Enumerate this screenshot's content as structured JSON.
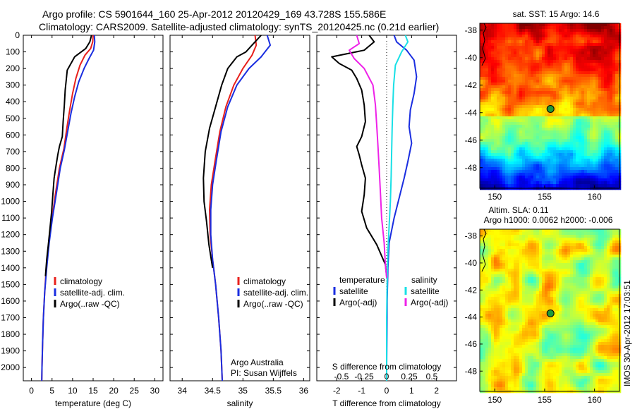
{
  "header": {
    "line1": "Argo profile: CS 5901644_160 25-Apr-2012 20120429_169 43.728S 155.586E",
    "line2": "Climatology: CARS2009. Satellite-adjusted climatology: synTS_20120425.nc (0.21d earlier)"
  },
  "colors": {
    "climatology": "#e8201c",
    "satellite": "#1a2ee0",
    "argo": "#000000",
    "cyan": "#18e0e6",
    "magenta": "#ee22e8",
    "marker": "#1f9a3a"
  },
  "chart_data": [
    {
      "type": "line",
      "id": "temperature",
      "xlabel": "temperature (deg C)",
      "ylabel": "",
      "xlim": [
        -2,
        32
      ],
      "ylim": [
        2080,
        0
      ],
      "xticks": [
        "0",
        "5",
        "10",
        "15",
        "20",
        "25",
        "30"
      ],
      "xtick_values": [
        0,
        5,
        10,
        15,
        20,
        25,
        30
      ],
      "yticks": [
        "0",
        "100",
        "200",
        "300",
        "400",
        "500",
        "600",
        "700",
        "800",
        "900",
        "1000",
        "1100",
        "1200",
        "1300",
        "1400",
        "1500",
        "1600",
        "1700",
        "1800",
        "1900",
        "2000"
      ],
      "ytick_values": [
        0,
        100,
        200,
        300,
        400,
        500,
        600,
        700,
        800,
        900,
        1000,
        1100,
        1200,
        1300,
        1400,
        1500,
        1600,
        1700,
        1800,
        1900,
        2000
      ],
      "legend": [
        "climatology",
        "satellite-adj. clim.",
        "Argo(..raw -QC)"
      ],
      "series": [
        {
          "name": "climatology",
          "color_key": "climatology",
          "points": [
            [
              15,
              0
            ],
            [
              14.9,
              40
            ],
            [
              14.4,
              80
            ],
            [
              13,
              120
            ],
            [
              11.8,
              180
            ],
            [
              10.8,
              260
            ],
            [
              10,
              350
            ],
            [
              9.3,
              450
            ],
            [
              8.6,
              560
            ],
            [
              7.9,
              680
            ],
            [
              6.8,
              800
            ],
            [
              5.8,
              960
            ],
            [
              5,
              1100
            ],
            [
              4.2,
              1250
            ],
            [
              3.6,
              1400
            ],
            [
              3.2,
              1550
            ],
            [
              2.9,
              1700
            ],
            [
              2.7,
              1850
            ],
            [
              2.55,
              2000
            ],
            [
              2.5,
              2080
            ]
          ]
        },
        {
          "name": "satellite-adj. clim.",
          "color_key": "satellite",
          "points": [
            [
              15.3,
              0
            ],
            [
              15.4,
              40
            ],
            [
              15.1,
              90
            ],
            [
              14,
              140
            ],
            [
              12.8,
              200
            ],
            [
              11.5,
              280
            ],
            [
              10.5,
              370
            ],
            [
              9.6,
              470
            ],
            [
              8.8,
              580
            ],
            [
              8,
              690
            ],
            [
              7,
              800
            ],
            [
              6,
              960
            ],
            [
              5.1,
              1100
            ],
            [
              4.3,
              1250
            ],
            [
              3.7,
              1400
            ],
            [
              3.2,
              1550
            ],
            [
              2.9,
              1700
            ],
            [
              2.7,
              1850
            ],
            [
              2.55,
              2000
            ],
            [
              2.5,
              2080
            ]
          ]
        },
        {
          "name": "Argo(..raw -QC)",
          "color_key": "argo",
          "points": [
            [
              14.6,
              0
            ],
            [
              14.2,
              40
            ],
            [
              13.2,
              80
            ],
            [
              10.5,
              130
            ],
            [
              9.6,
              170
            ],
            [
              8.7,
              210
            ],
            [
              8.5,
              260
            ],
            [
              8.2,
              330
            ],
            [
              8,
              420
            ],
            [
              7.7,
              520
            ],
            [
              7.5,
              610
            ],
            [
              6.8,
              670
            ],
            [
              6.4,
              720
            ],
            [
              6,
              780
            ],
            [
              5.5,
              860
            ],
            [
              5.2,
              960
            ],
            [
              4.9,
              1060
            ],
            [
              4.5,
              1160
            ],
            [
              4.1,
              1260
            ],
            [
              3.7,
              1350
            ],
            [
              3.4,
              1450
            ]
          ]
        }
      ]
    },
    {
      "type": "line",
      "id": "salinity",
      "xlabel": "salinity",
      "xlim": [
        33.8,
        36.1
      ],
      "ylim": [
        2080,
        0
      ],
      "xticks": [
        "34",
        "34.5",
        "35",
        "35.5",
        "36"
      ],
      "xtick_values": [
        34,
        34.5,
        35,
        35.5,
        36
      ],
      "legend": [
        "climatology",
        "satellite-adj. clim.",
        "Argo(..raw -QC)"
      ],
      "annotation": [
        "Argo Australia",
        "PI: Susan Wijffels"
      ],
      "series": [
        {
          "name": "climatology",
          "color_key": "climatology",
          "points": [
            [
              35.2,
              0
            ],
            [
              35.22,
              60
            ],
            [
              35.15,
              120
            ],
            [
              35,
              200
            ],
            [
              34.85,
              300
            ],
            [
              34.72,
              430
            ],
            [
              34.62,
              580
            ],
            [
              34.54,
              760
            ],
            [
              34.48,
              900
            ],
            [
              34.45,
              1050
            ],
            [
              34.46,
              1200
            ],
            [
              34.5,
              1350
            ],
            [
              34.55,
              1500
            ],
            [
              34.6,
              1700
            ],
            [
              34.64,
              1900
            ],
            [
              34.66,
              2080
            ]
          ]
        },
        {
          "name": "satellite-adj. clim.",
          "color_key": "satellite",
          "points": [
            [
              35.4,
              0
            ],
            [
              35.45,
              60
            ],
            [
              35.3,
              130
            ],
            [
              35.1,
              200
            ],
            [
              34.9,
              300
            ],
            [
              34.75,
              430
            ],
            [
              34.64,
              580
            ],
            [
              34.56,
              760
            ],
            [
              34.5,
              900
            ],
            [
              34.47,
              1050
            ],
            [
              34.47,
              1200
            ],
            [
              34.5,
              1350
            ],
            [
              34.55,
              1500
            ],
            [
              34.6,
              1700
            ],
            [
              34.64,
              1900
            ],
            [
              34.66,
              2080
            ]
          ]
        },
        {
          "name": "Argo(..raw -QC)",
          "color_key": "argo",
          "points": [
            [
              35.3,
              0
            ],
            [
              35.15,
              60
            ],
            [
              35.05,
              100
            ],
            [
              34.9,
              130
            ],
            [
              34.75,
              200
            ],
            [
              34.65,
              300
            ],
            [
              34.55,
              430
            ],
            [
              34.45,
              560
            ],
            [
              34.38,
              700
            ],
            [
              34.35,
              860
            ],
            [
              34.36,
              1000
            ],
            [
              34.4,
              1120
            ],
            [
              34.44,
              1260
            ],
            [
              34.5,
              1400
            ]
          ]
        }
      ]
    },
    {
      "type": "line",
      "id": "differences",
      "xlabel": "T difference from climatology",
      "xlabel_top": "S difference from climatology",
      "xlim": [
        -2.8,
        2.8
      ],
      "ylim": [
        2080,
        0
      ],
      "xticks": [
        "-2",
        "-1",
        "0",
        "1",
        "2"
      ],
      "xtick_values": [
        -2,
        -1,
        0,
        1,
        2
      ],
      "s_xticks": [
        "-0.5",
        "-0.25",
        "0",
        "0.25",
        "0.5"
      ],
      "s_xtick_values": [
        -0.5,
        -0.25,
        0,
        0.25,
        0.5
      ],
      "legend_temperature_title": "temperature",
      "legend_salinity_title": "salinity",
      "legend": [
        "satellite",
        "Argo(-adj)",
        "satellite",
        "Argo(-adj)"
      ],
      "series": [
        {
          "name": "satellite",
          "group": "temperature",
          "color_key": "satellite",
          "points": [
            [
              0.3,
              0
            ],
            [
              0.4,
              40
            ],
            [
              0.8,
              90
            ],
            [
              1.1,
              150
            ],
            [
              1.2,
              250
            ],
            [
              1.1,
              350
            ],
            [
              0.95,
              450
            ],
            [
              0.9,
              550
            ],
            [
              1,
              650
            ],
            [
              0.85,
              760
            ],
            [
              0.7,
              860
            ],
            [
              0.5,
              980
            ],
            [
              0.3,
              1100
            ],
            [
              0.1,
              1250
            ],
            [
              0.05,
              1400
            ],
            [
              0.02,
              1600
            ],
            [
              0.01,
              1800
            ],
            [
              0,
              2000
            ],
            [
              0,
              2080
            ]
          ]
        },
        {
          "name": "Argo(-adj)",
          "group": "temperature",
          "color_key": "argo",
          "points": [
            [
              -0.7,
              0
            ],
            [
              -0.5,
              40
            ],
            [
              -0.9,
              90
            ],
            [
              -2.2,
              130
            ],
            [
              -1.9,
              170
            ],
            [
              -1.4,
              210
            ],
            [
              -1.2,
              260
            ],
            [
              -1,
              330
            ],
            [
              -0.9,
              420
            ],
            [
              -0.85,
              520
            ],
            [
              -1,
              610
            ],
            [
              -1.2,
              670
            ],
            [
              -1.1,
              720
            ],
            [
              -1,
              780
            ],
            [
              -0.85,
              860
            ],
            [
              -0.9,
              960
            ],
            [
              -1,
              1060
            ],
            [
              -0.8,
              1160
            ],
            [
              -0.4,
              1260
            ],
            [
              -0.05,
              1380
            ],
            [
              0,
              1450
            ]
          ]
        },
        {
          "name": "satellite",
          "group": "salinity",
          "color_key": "cyan",
          "points": [
            [
              0.75,
              0
            ],
            [
              0.85,
              40
            ],
            [
              0.6,
              100
            ],
            [
              0.35,
              180
            ],
            [
              0.28,
              300
            ],
            [
              0.25,
              420
            ],
            [
              0.22,
              560
            ],
            [
              0.2,
              700
            ],
            [
              0.18,
              850
            ],
            [
              0.15,
              1000
            ],
            [
              0.1,
              1150
            ],
            [
              0.05,
              1300
            ],
            [
              0.02,
              1500
            ],
            [
              0,
              1700
            ],
            [
              0,
              2080
            ]
          ]
        },
        {
          "name": "Argo(-adj)",
          "group": "salinity",
          "color_key": "magenta",
          "points": [
            [
              -1.2,
              0
            ],
            [
              -1.1,
              50
            ],
            [
              -1.5,
              90
            ],
            [
              -1.3,
              140
            ],
            [
              -0.9,
              200
            ],
            [
              -0.55,
              300
            ],
            [
              -0.45,
              420
            ],
            [
              -0.4,
              540
            ],
            [
              -0.35,
              660
            ],
            [
              -0.3,
              800
            ],
            [
              -0.25,
              950
            ],
            [
              -0.2,
              1100
            ],
            [
              -0.1,
              1250
            ],
            [
              -0.05,
              1380
            ],
            [
              0,
              1460
            ]
          ]
        }
      ]
    },
    {
      "type": "heatmap",
      "id": "sst-map",
      "title": "sat. SST: 15 Argo: 14.6",
      "xlim": [
        148.5,
        162.5
      ],
      "ylim": [
        -49.5,
        -37.5
      ],
      "xticks": [
        "150",
        "155",
        "160"
      ],
      "xtick_values": [
        150,
        155,
        160
      ],
      "yticks": [
        "-38",
        "-40",
        "-42",
        "-44",
        "-46",
        "-48"
      ],
      "ytick_values": [
        -38,
        -40,
        -42,
        -44,
        -46,
        -48
      ],
      "marker": [
        155.586,
        -43.728
      ]
    },
    {
      "type": "heatmap",
      "id": "sla-map",
      "title": "Altim. SLA: 0.11",
      "subtitle": "Argo h1000: 0.0062 h2000: -0.006",
      "xlim": [
        148.5,
        162.5
      ],
      "ylim": [
        -49.5,
        -37.5
      ],
      "xticks": [
        "150",
        "155",
        "160"
      ],
      "xtick_values": [
        150,
        155,
        160
      ],
      "yticks": [
        "-38",
        "-40",
        "-42",
        "-44",
        "-46",
        "-48"
      ],
      "ytick_values": [
        -38,
        -40,
        -42,
        -44,
        -46,
        -48
      ],
      "marker": [
        155.586,
        -43.728
      ]
    }
  ],
  "footer": {
    "stamp": "IMOS 30-Apr-2012 17:03:51"
  }
}
